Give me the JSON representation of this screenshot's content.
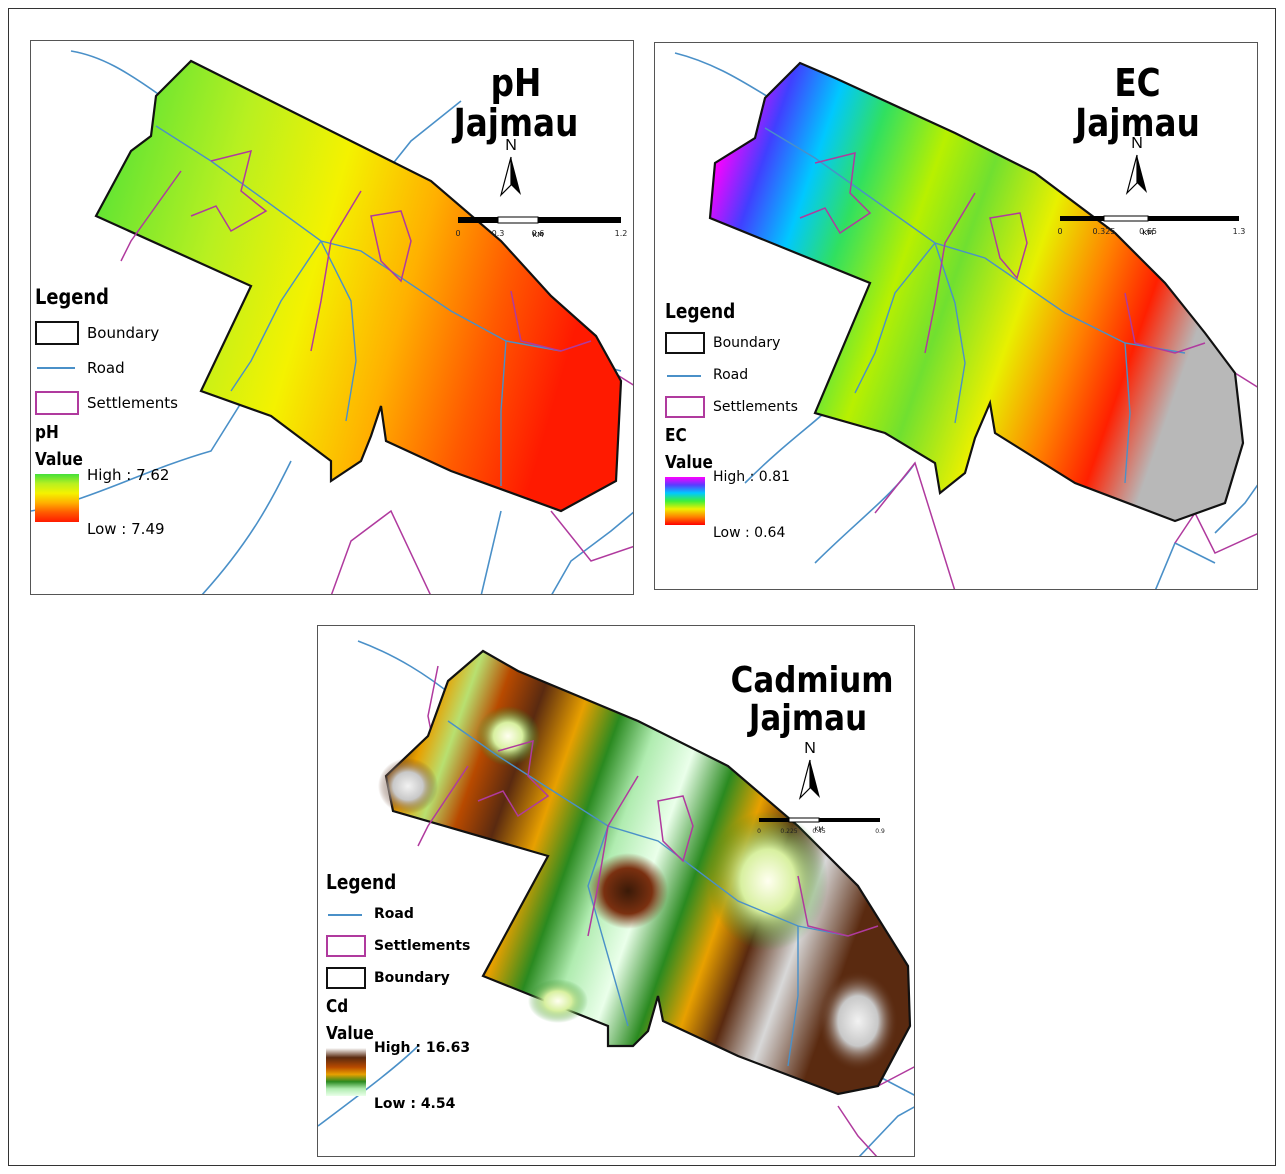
{
  "panels": [
    {
      "id": "ph",
      "title_line1": "pH",
      "title_line2": "Jajmau",
      "north_label": "N",
      "scale_ticks": [
        "0",
        "0.3",
        "0.6",
        "1.2"
      ],
      "scale_unit": "KM",
      "legend_title": "Legend",
      "legend_items": [
        "Boundary",
        "Road",
        "Settlements"
      ],
      "variable_label": "pH",
      "value_label": "Value",
      "high_label": "High : 7.62",
      "low_label": "Low : 7.49",
      "high_value": 7.62,
      "low_value": 7.49,
      "ramp_colors": [
        "#44e03a",
        "#b8f020",
        "#f4f200",
        "#ffb000",
        "#ff5a00",
        "#ff1a00"
      ]
    },
    {
      "id": "ec",
      "title_line1": "EC",
      "title_line2": "Jajmau",
      "north_label": "N",
      "scale_ticks": [
        "0",
        "0.325",
        "0.65",
        "1.3"
      ],
      "scale_unit": "KM",
      "legend_title": "Legend",
      "legend_items": [
        "Boundary",
        "Road",
        "Settlements"
      ],
      "variable_label": "EC",
      "value_label": "Value",
      "high_label": "High : 0.81",
      "low_label": "Low : 0.64",
      "high_value": 0.81,
      "low_value": 0.64,
      "ramp_colors": [
        "#ff00ff",
        "#5a3cff",
        "#00c8ff",
        "#3cf03c",
        "#f0f000",
        "#ff8000",
        "#ff0000"
      ]
    },
    {
      "id": "cd",
      "title_line1": "Cadmium",
      "title_line2": "Jajmau",
      "north_label": "N",
      "scale_ticks": [
        "0",
        "0.225",
        "0.45",
        "0.9"
      ],
      "scale_unit": "KM",
      "legend_title": "Legend",
      "legend_items": [
        "Road",
        "Settlements",
        "Boundary"
      ],
      "variable_label": "Cd",
      "value_label": "Value",
      "high_label": "High : 16.63",
      "low_label": "Low : 4.54",
      "high_value": 16.63,
      "low_value": 4.54,
      "ramp_colors": [
        "#ffffff",
        "#5a2a10",
        "#b84a00",
        "#e8a000",
        "#2a8a20",
        "#b0ecb0",
        "#eaffea"
      ]
    }
  ],
  "colors": {
    "boundary": "#111111",
    "road": "#4a90c8",
    "settlements": "#b03a9e"
  }
}
